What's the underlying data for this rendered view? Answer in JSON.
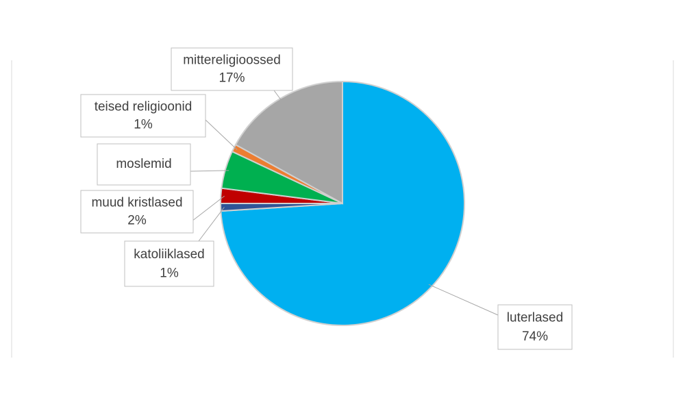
{
  "chart_data": {
    "type": "pie",
    "categories": [
      "luterlased",
      "katoliiklased",
      "muud kristlased",
      "moslemid",
      "teised religioonid",
      "mittereligioossed"
    ],
    "values": [
      74,
      1,
      2,
      5,
      1,
      17
    ],
    "value_labels": [
      "74%",
      "1%",
      "2%",
      null,
      "1%",
      "17%"
    ],
    "colors": [
      "#00b0f0",
      "#2f5597",
      "#c00000",
      "#00b050",
      "#ed7d31",
      "#a6a6a6"
    ]
  }
}
